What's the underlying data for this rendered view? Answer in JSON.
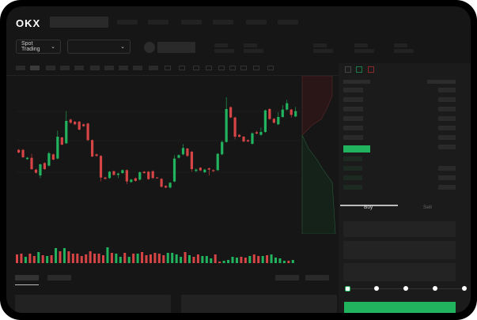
{
  "header": {
    "logo": "OKX"
  },
  "toolbar": {
    "market_select": "Spot Trading",
    "pair_select": ""
  },
  "trade_form": {
    "tabs": [
      "Buy",
      "Sell"
    ],
    "active_tab": "Buy",
    "slider_percent": 0
  },
  "colors": {
    "up": "#22b35e",
    "down": "#d64545",
    "accent": "#22b35e",
    "background": "#161616"
  },
  "chart_data": {
    "type": "candlestick",
    "grid": true,
    "candles": [
      [
        185,
        188,
        172,
        175
      ],
      [
        185,
        188,
        154,
        157
      ],
      [
        150,
        158,
        147,
        155
      ],
      [
        155,
        170,
        109,
        112
      ],
      [
        110,
        113,
        95,
        98
      ],
      [
        88,
        133,
        78,
        130
      ],
      [
        135,
        138,
        109,
        112
      ],
      [
        125,
        178,
        122,
        172
      ],
      [
        168,
        171,
        145,
        148
      ],
      [
        152,
        258,
        149,
        235
      ],
      [
        232,
        235,
        202,
        205
      ],
      [
        210,
        332,
        207,
        295
      ],
      [
        300,
        303,
        285,
        288
      ],
      [
        292,
        295,
        279,
        282
      ],
      [
        292,
        295,
        259,
        262
      ],
      [
        282,
        285,
        272,
        275
      ],
      [
        285,
        288,
        219,
        222
      ],
      [
        222,
        225,
        157,
        160
      ],
      [
        168,
        171,
        159,
        162
      ],
      [
        162,
        165,
        65,
        80
      ],
      [
        80,
        83,
        72,
        75
      ],
      [
        78,
        105,
        75,
        102
      ],
      [
        104,
        107,
        87,
        90
      ],
      [
        90,
        98,
        78,
        95
      ],
      [
        97,
        111,
        94,
        108
      ],
      [
        108,
        111,
        55,
        65
      ],
      [
        63,
        75,
        60,
        72
      ],
      [
        77,
        80,
        64,
        67
      ],
      [
        72,
        103,
        69,
        100
      ],
      [
        102,
        105,
        94,
        97
      ],
      [
        102,
        105,
        71,
        74
      ],
      [
        104,
        107,
        75,
        78
      ],
      [
        80,
        82,
        76,
        78
      ],
      [
        75,
        78,
        42,
        45
      ],
      [
        48,
        51,
        39,
        42
      ],
      [
        42,
        63,
        39,
        60
      ],
      [
        65,
        165,
        62,
        152
      ],
      [
        155,
        168,
        152,
        165
      ],
      [
        168,
        207,
        165,
        192
      ],
      [
        190,
        193,
        159,
        162
      ],
      [
        178,
        181,
        102,
        112
      ],
      [
        105,
        115,
        100,
        110
      ],
      [
        117,
        120,
        104,
        107
      ],
      [
        100,
        113,
        97,
        110
      ],
      [
        115,
        118,
        88,
        110
      ],
      [
        108,
        111,
        101,
        104
      ],
      [
        108,
        173,
        105,
        170
      ],
      [
        168,
        220,
        165,
        215
      ],
      [
        215,
        385,
        212,
        340
      ],
      [
        347,
        350,
        305,
        308
      ],
      [
        308,
        311,
        225,
        235
      ],
      [
        242,
        245,
        232,
        235
      ],
      [
        235,
        238,
        214,
        217
      ],
      [
        222,
        225,
        214,
        217
      ],
      [
        208,
        251,
        205,
        248
      ],
      [
        252,
        258,
        244,
        247
      ],
      [
        242,
        270,
        239,
        253
      ],
      [
        253,
        338,
        250,
        335
      ],
      [
        340,
        343,
        299,
        302
      ],
      [
        303,
        306,
        285,
        288
      ],
      [
        282,
        328,
        279,
        310
      ],
      [
        310,
        355,
        307,
        338
      ],
      [
        338,
        375,
        335,
        362
      ],
      [
        338,
        341,
        308,
        318
      ],
      [
        312,
        348,
        309,
        332
      ]
    ],
    "volume": [
      [
        11,
        "d"
      ],
      [
        12,
        "d"
      ],
      [
        8,
        "u"
      ],
      [
        12,
        "d"
      ],
      [
        9,
        "d"
      ],
      [
        14,
        "u"
      ],
      [
        10,
        "d"
      ],
      [
        9,
        "u"
      ],
      [
        10,
        "d"
      ],
      [
        19,
        "u"
      ],
      [
        15,
        "d"
      ],
      [
        19,
        "u"
      ],
      [
        15,
        "d"
      ],
      [
        12,
        "d"
      ],
      [
        12,
        "d"
      ],
      [
        9,
        "d"
      ],
      [
        11,
        "d"
      ],
      [
        15,
        "d"
      ],
      [
        12,
        "d"
      ],
      [
        12,
        "d"
      ],
      [
        10,
        "d"
      ],
      [
        20,
        "u"
      ],
      [
        13,
        "d"
      ],
      [
        12,
        "u"
      ],
      [
        8,
        "u"
      ],
      [
        13,
        "d"
      ],
      [
        8,
        "u"
      ],
      [
        12,
        "d"
      ],
      [
        12,
        "u"
      ],
      [
        14,
        "d"
      ],
      [
        10,
        "d"
      ],
      [
        11,
        "d"
      ],
      [
        13,
        "d"
      ],
      [
        12,
        "d"
      ],
      [
        10,
        "d"
      ],
      [
        13,
        "u"
      ],
      [
        13,
        "u"
      ],
      [
        11,
        "u"
      ],
      [
        8,
        "u"
      ],
      [
        14,
        "d"
      ],
      [
        10,
        "u"
      ],
      [
        8,
        "d"
      ],
      [
        11,
        "d"
      ],
      [
        9,
        "u"
      ],
      [
        9,
        "u"
      ],
      [
        6,
        "u"
      ],
      [
        11,
        "d"
      ],
      [
        2,
        "d"
      ],
      [
        3,
        "u"
      ],
      [
        4,
        "u"
      ],
      [
        8,
        "u"
      ],
      [
        7,
        "u"
      ],
      [
        8,
        "d"
      ],
      [
        7,
        "d"
      ],
      [
        9,
        "u"
      ],
      [
        11,
        "d"
      ],
      [
        9,
        "d"
      ],
      [
        9,
        "u"
      ],
      [
        10,
        "d"
      ],
      [
        11,
        "u"
      ],
      [
        7,
        "u"
      ],
      [
        6,
        "u"
      ],
      [
        3,
        "u"
      ],
      [
        3,
        "d"
      ],
      [
        4,
        "u"
      ]
    ]
  }
}
